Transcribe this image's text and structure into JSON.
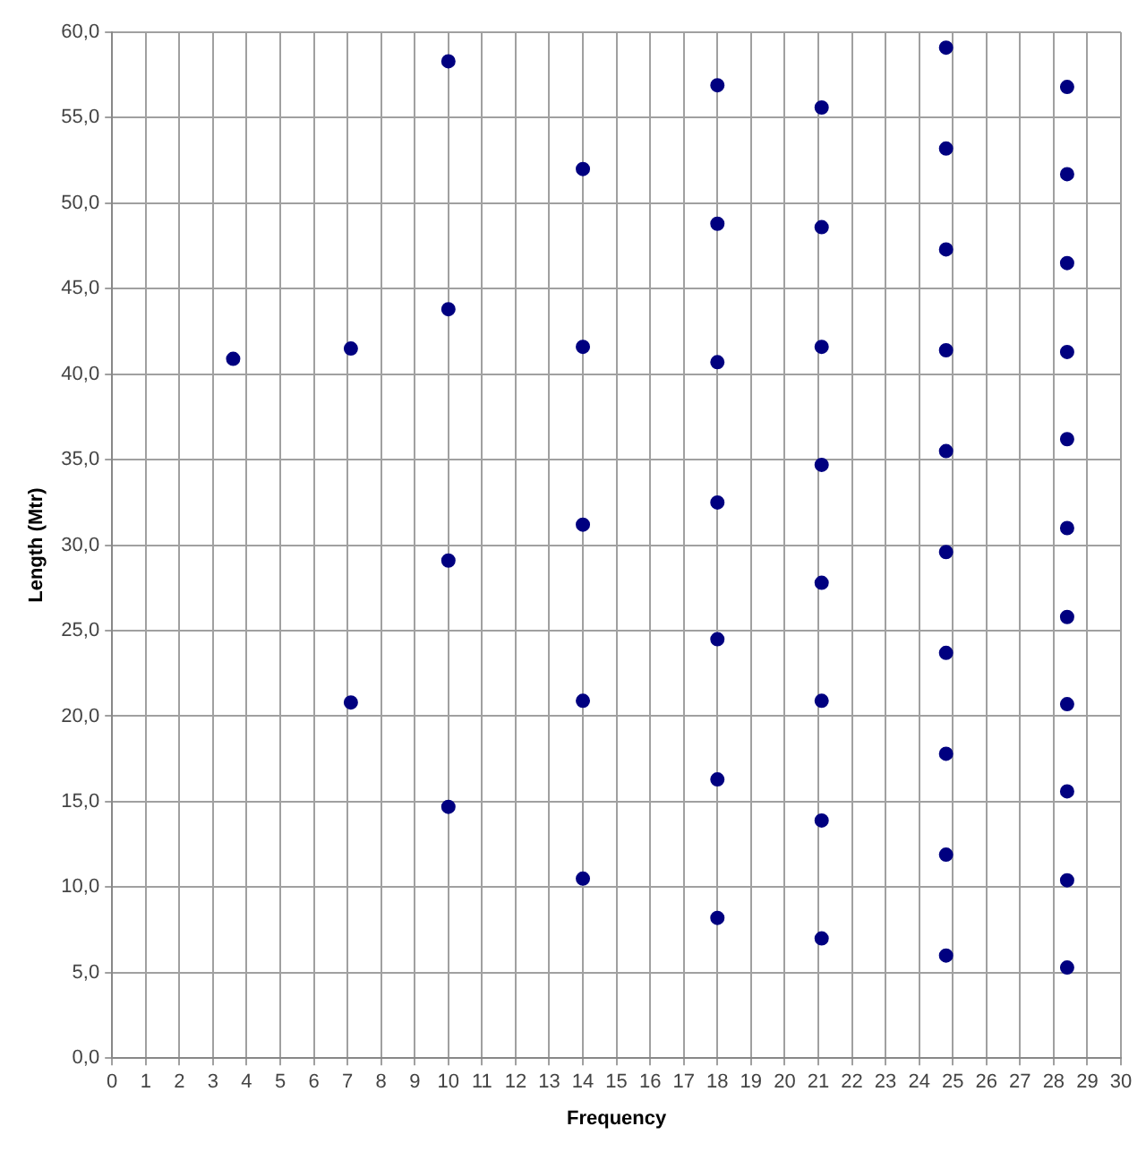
{
  "chart_data": {
    "type": "scatter",
    "xlabel": "Frequency",
    "ylabel": "Length (Mtr)",
    "x": [
      3.6,
      7.1,
      7.1,
      10.0,
      10.0,
      10.0,
      10.0,
      14.0,
      14.0,
      14.0,
      14.0,
      14.0,
      18.0,
      18.0,
      18.0,
      18.0,
      18.0,
      18.0,
      18.0,
      21.1,
      21.1,
      21.1,
      21.1,
      21.1,
      21.1,
      21.1,
      21.1,
      24.8,
      24.8,
      24.8,
      24.8,
      24.8,
      24.8,
      24.8,
      24.8,
      24.8,
      24.8,
      28.4,
      28.4,
      28.4,
      28.4,
      28.4,
      28.4,
      28.4,
      28.4,
      28.4,
      28.4,
      28.4
    ],
    "values": [
      40.9,
      41.5,
      20.8,
      58.3,
      43.8,
      29.1,
      14.7,
      52.0,
      41.6,
      31.2,
      20.9,
      10.5,
      56.9,
      48.8,
      40.7,
      32.5,
      24.5,
      16.3,
      8.2,
      55.6,
      48.6,
      41.6,
      34.7,
      27.8,
      20.9,
      13.9,
      7.0,
      59.1,
      53.2,
      47.3,
      41.4,
      35.5,
      29.6,
      23.7,
      17.8,
      11.9,
      6.0,
      56.8,
      51.7,
      46.5,
      41.3,
      36.2,
      31.0,
      25.8,
      20.7,
      15.6,
      10.4,
      5.3
    ],
    "color": "#000080",
    "marker": "circle",
    "grid": true,
    "legend": false,
    "xlim": [
      0,
      30
    ],
    "xticks": [
      0,
      1,
      2,
      3,
      4,
      5,
      6,
      7,
      8,
      9,
      10,
      11,
      12,
      13,
      14,
      15,
      16,
      17,
      18,
      19,
      20,
      21,
      22,
      23,
      24,
      25,
      26,
      27,
      28,
      29,
      30
    ],
    "ylim": [
      0,
      60
    ],
    "yticks": [
      {
        "value": 0,
        "label": "0,0"
      },
      {
        "value": 5,
        "label": "5,0"
      },
      {
        "value": 10,
        "label": "10,0"
      },
      {
        "value": 15,
        "label": "15,0"
      },
      {
        "value": 20,
        "label": "20,0"
      },
      {
        "value": 25,
        "label": "25,0"
      },
      {
        "value": 30,
        "label": "30,0"
      },
      {
        "value": 35,
        "label": "35,0"
      },
      {
        "value": 40,
        "label": "40,0"
      },
      {
        "value": 45,
        "label": "45,0"
      },
      {
        "value": 50,
        "label": "50,0"
      },
      {
        "value": 55,
        "label": "55,0"
      },
      {
        "value": 60,
        "label": "60,0"
      }
    ]
  }
}
